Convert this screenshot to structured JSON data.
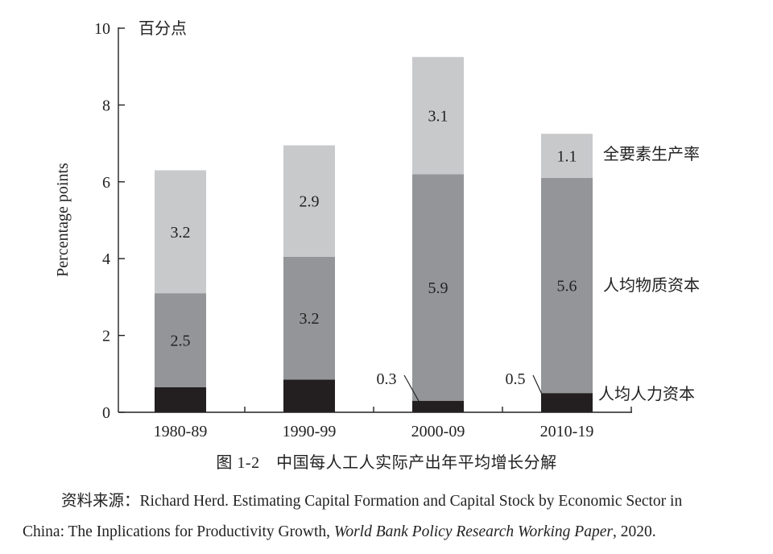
{
  "chart_data": {
    "type": "bar",
    "stacked": true,
    "ylabel": "Percentage points",
    "unit_label": "百分点",
    "ylim": [
      0,
      10
    ],
    "yticks": [
      0,
      2,
      4,
      6,
      8,
      10
    ],
    "categories": [
      "1980-89",
      "1990-99",
      "2000-09",
      "2010-19"
    ],
    "series": [
      {
        "name": "人均人力资本",
        "values": [
          0.65,
          0.85,
          0.3,
          0.5
        ],
        "labels": [
          "",
          "",
          "0.3",
          "0.5"
        ],
        "color": "#231f20"
      },
      {
        "name": "人均物质资本",
        "values": [
          2.45,
          3.2,
          5.9,
          5.6
        ],
        "labels": [
          "2.5",
          "3.2",
          "5.9",
          "5.6"
        ],
        "color": "#939598"
      },
      {
        "name": "全要素生产率",
        "values": [
          3.2,
          2.9,
          3.05,
          1.15
        ],
        "labels": [
          "3.2",
          "2.9",
          "3.1",
          "1.1"
        ],
        "color": "#c8c9cb"
      }
    ],
    "legend_placement": "right, inline with last bar",
    "grid": false
  },
  "caption": "图 1-2　中国每人工人实际产出年平均增长分解",
  "source": {
    "prefix": "资料来源：",
    "text1": "Richard Herd. Estimating Capital Formation and Capital Stock by Economic Sector in",
    "text2": "China: The Inplications for Productivity Growth, ",
    "journal": "World Bank Policy Research Working Paper",
    "year": ", 2020."
  }
}
